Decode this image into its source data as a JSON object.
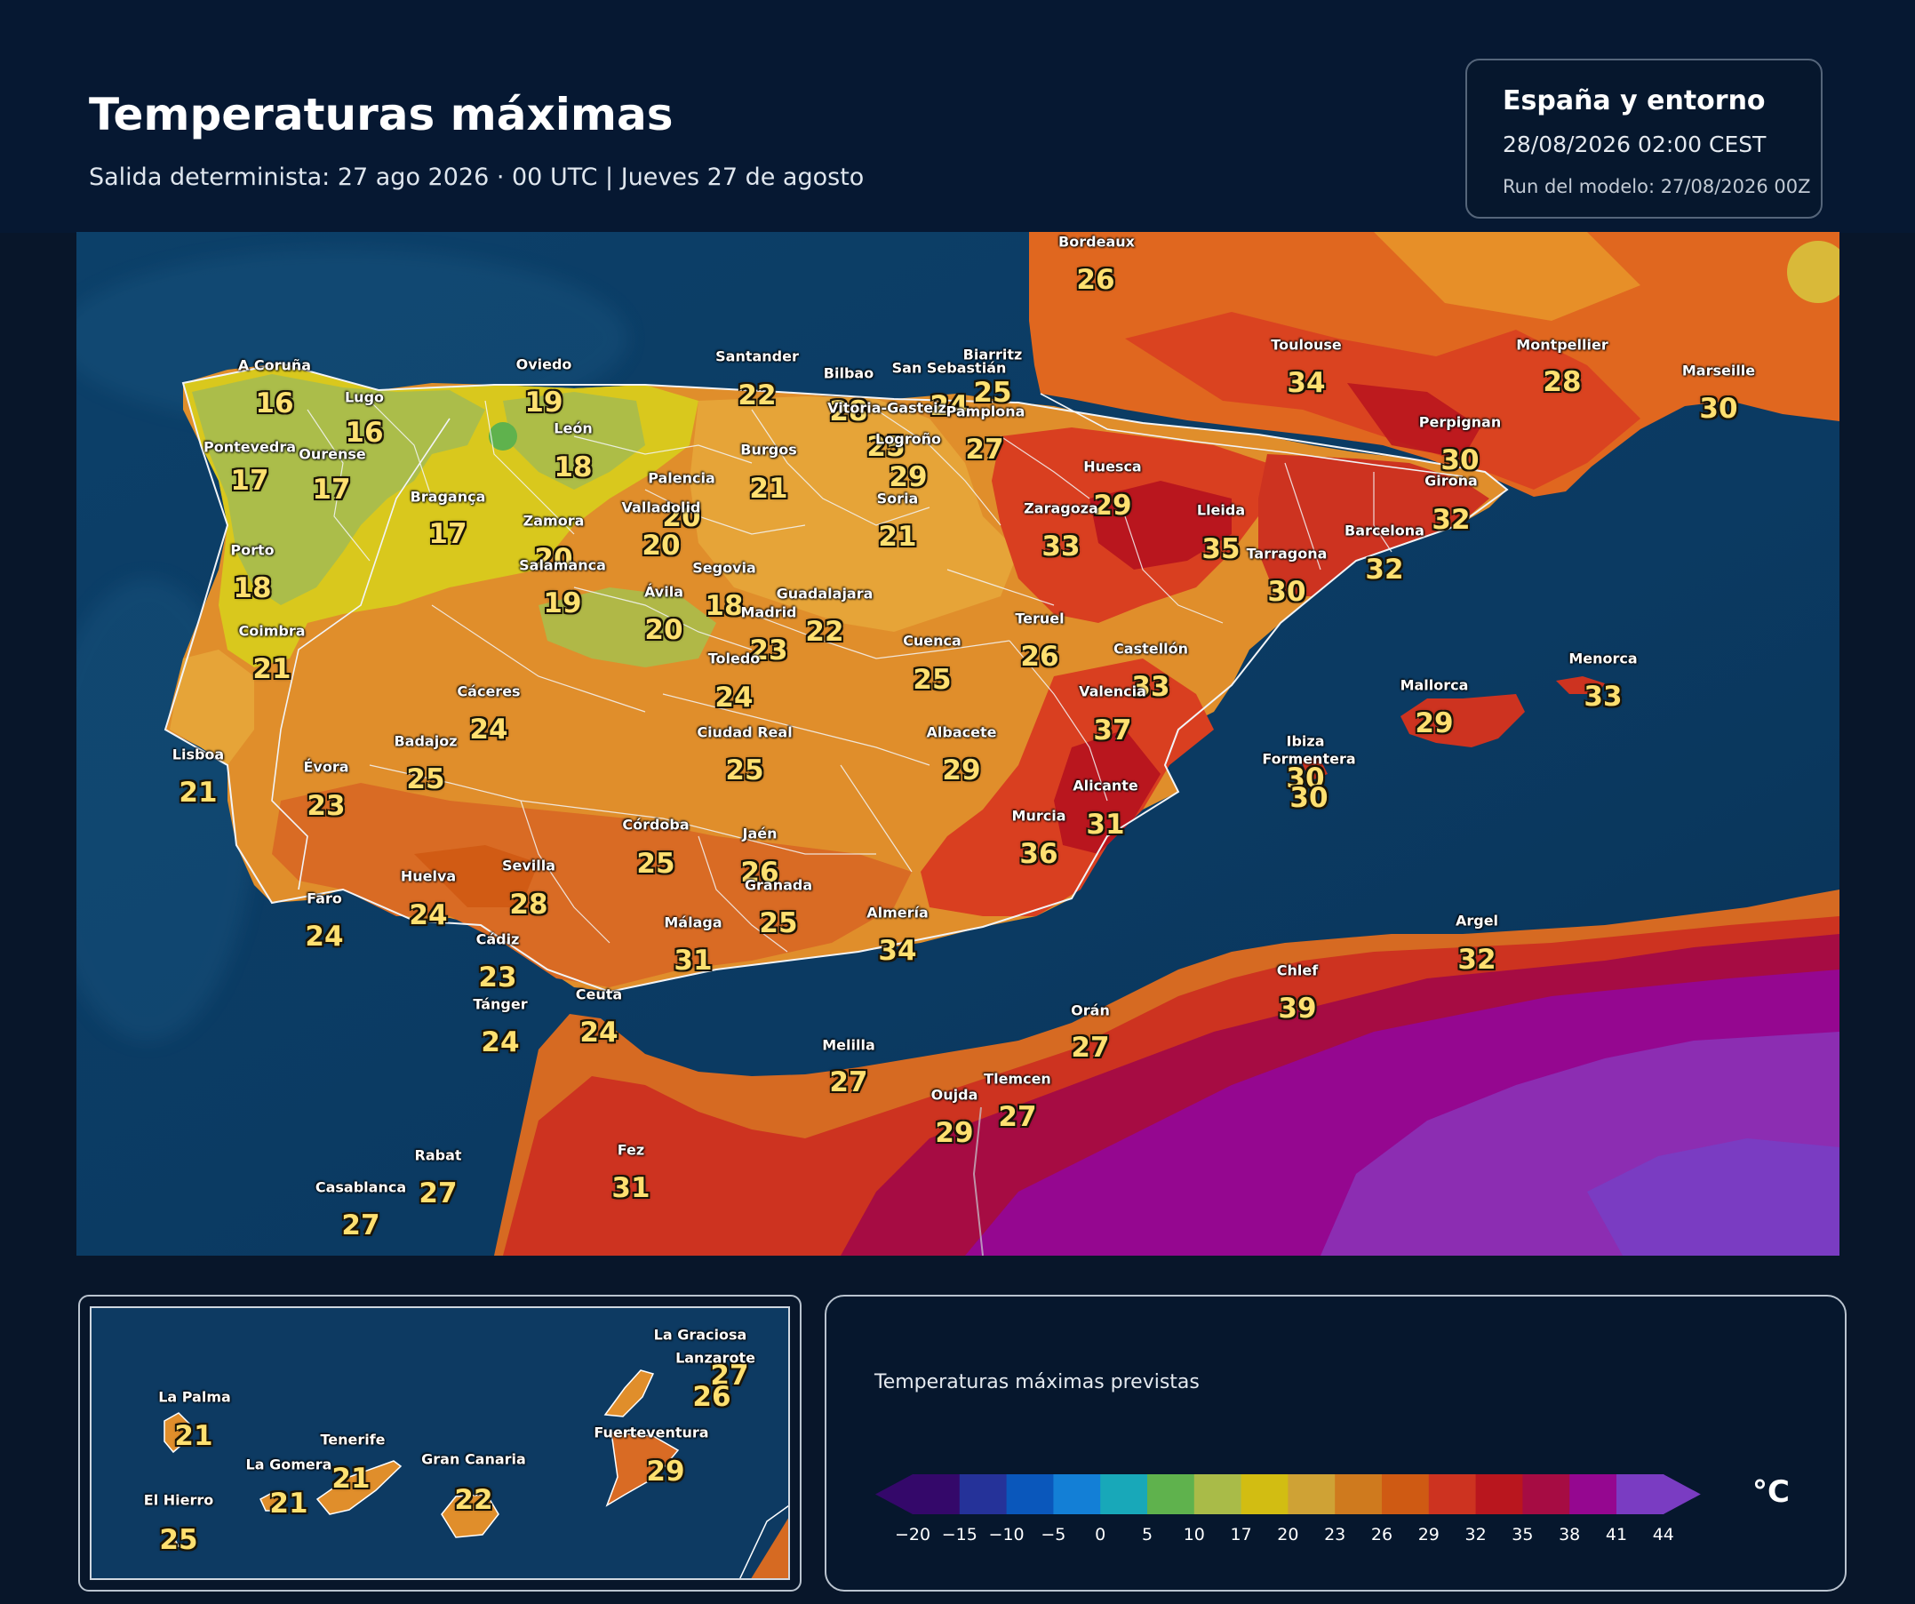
{
  "header": {
    "title": "Temperaturas máximas",
    "subtitle": "Salida determinista: 27 ago 2026 · 00 UTC  |  Jueves 27 de agosto"
  },
  "info": {
    "region": "España y entorno",
    "datetime": "28/08/2026  02:00 CEST",
    "run": "Run del modelo: 27/08/2026 00Z"
  },
  "cities": [
    {
      "name": "Bordeaux",
      "temp": "26"
    },
    {
      "name": "A Coruña",
      "temp": "16"
    },
    {
      "name": "Lugo",
      "temp": "16"
    },
    {
      "name": "Oviedo",
      "temp": "19"
    },
    {
      "name": "Santander",
      "temp": "22"
    },
    {
      "name": "Bilbao",
      "temp": "28"
    },
    {
      "name": "Biarritz",
      "temp": "25"
    },
    {
      "name": "San Sebastián",
      "temp": "24"
    },
    {
      "name": "Vitoria-Gasteiz",
      "temp": "25"
    },
    {
      "name": "Pamplona",
      "temp": "27"
    },
    {
      "name": "Logroño",
      "temp": "29"
    },
    {
      "name": "Toulouse",
      "temp": "34"
    },
    {
      "name": "Montpellier",
      "temp": "28"
    },
    {
      "name": "Marseille",
      "temp": "30"
    },
    {
      "name": "Perpignan",
      "temp": "30"
    },
    {
      "name": "Girona",
      "temp": "32"
    },
    {
      "name": "Pontevedra",
      "temp": "17"
    },
    {
      "name": "Ourense",
      "temp": "17"
    },
    {
      "name": "León",
      "temp": "18"
    },
    {
      "name": "Burgos",
      "temp": "21"
    },
    {
      "name": "Palencia",
      "temp": "20"
    },
    {
      "name": "Huesca",
      "temp": "29"
    },
    {
      "name": "Soria",
      "temp": "21"
    },
    {
      "name": "Zaragoza",
      "temp": "33"
    },
    {
      "name": "Lleida",
      "temp": "35"
    },
    {
      "name": "Barcelona",
      "temp": "32"
    },
    {
      "name": "Tarragona",
      "temp": "30"
    },
    {
      "name": "Bragança",
      "temp": "17"
    },
    {
      "name": "Valladolid",
      "temp": "20"
    },
    {
      "name": "Zamora",
      "temp": "20"
    },
    {
      "name": "Salamanca",
      "temp": "19"
    },
    {
      "name": "Porto",
      "temp": "18"
    },
    {
      "name": "Segovia",
      "temp": "18"
    },
    {
      "name": "Ávila",
      "temp": "20"
    },
    {
      "name": "Guadalajara",
      "temp": "22"
    },
    {
      "name": "Madrid",
      "temp": "23"
    },
    {
      "name": "Teruel",
      "temp": "26"
    },
    {
      "name": "Coimbra",
      "temp": "21"
    },
    {
      "name": "Cuenca",
      "temp": "25"
    },
    {
      "name": "Toledo",
      "temp": "24"
    },
    {
      "name": "Castellón",
      "temp": "33"
    },
    {
      "name": "Cáceres",
      "temp": "24"
    },
    {
      "name": "Valencia",
      "temp": "37"
    },
    {
      "name": "Menorca",
      "temp": "33"
    },
    {
      "name": "Mallorca",
      "temp": "29"
    },
    {
      "name": "Badajoz",
      "temp": "25"
    },
    {
      "name": "Ciudad Real",
      "temp": "25"
    },
    {
      "name": "Albacete",
      "temp": "29"
    },
    {
      "name": "Lisboa",
      "temp": "21"
    },
    {
      "name": "Évora",
      "temp": "23"
    },
    {
      "name": "Ibiza",
      "temp": "30"
    },
    {
      "name": "Formentera",
      "temp": "30"
    },
    {
      "name": "Alicante",
      "temp": "31"
    },
    {
      "name": "Murcia",
      "temp": "36"
    },
    {
      "name": "Córdoba",
      "temp": "25"
    },
    {
      "name": "Jaén",
      "temp": "26"
    },
    {
      "name": "Sevilla",
      "temp": "28"
    },
    {
      "name": "Huelva",
      "temp": "24"
    },
    {
      "name": "Granada",
      "temp": "25"
    },
    {
      "name": "Faro",
      "temp": "24"
    },
    {
      "name": "Almería",
      "temp": "34"
    },
    {
      "name": "Málaga",
      "temp": "31"
    },
    {
      "name": "Cádiz",
      "temp": "23"
    },
    {
      "name": "Argel",
      "temp": "32"
    },
    {
      "name": "Chlef",
      "temp": "39"
    },
    {
      "name": "Tánger",
      "temp": "24"
    },
    {
      "name": "Ceuta",
      "temp": "24"
    },
    {
      "name": "Orán",
      "temp": "27"
    },
    {
      "name": "Melilla",
      "temp": "27"
    },
    {
      "name": "Oujda",
      "temp": "29"
    },
    {
      "name": "Tlemcen",
      "temp": "27"
    },
    {
      "name": "Rabat",
      "temp": "27"
    },
    {
      "name": "Fez",
      "temp": "31"
    },
    {
      "name": "Casablanca",
      "temp": "27"
    }
  ],
  "canarias": [
    {
      "name": "La Graciosa",
      "temp": "27"
    },
    {
      "name": "Lanzarote",
      "temp": "26"
    },
    {
      "name": "La Palma",
      "temp": "21"
    },
    {
      "name": "Tenerife",
      "temp": "21"
    },
    {
      "name": "Fuerteventura",
      "temp": "29"
    },
    {
      "name": "La Gomera",
      "temp": "21"
    },
    {
      "name": "Gran Canaria",
      "temp": "22"
    },
    {
      "name": "El Hierro",
      "temp": "25"
    }
  ],
  "legend": {
    "title": "Temperaturas máximas previstas",
    "unit": "°C",
    "ticks": [
      "−20",
      "−15",
      "−10",
      "−5",
      "0",
      "5",
      "10",
      "17",
      "20",
      "23",
      "26",
      "29",
      "32",
      "35",
      "38",
      "41",
      "44"
    ],
    "colors": [
      "#34086a",
      "#253299",
      "#0a57bb",
      "#137fd6",
      "#18a8b9",
      "#5fb24d",
      "#a9bb48",
      "#d2bd12",
      "#cfa235",
      "#cf7a1e",
      "#cf5a13",
      "#cd3320",
      "#b9161e",
      "#a60c43",
      "#950790",
      "#7a3cc2"
    ]
  }
}
